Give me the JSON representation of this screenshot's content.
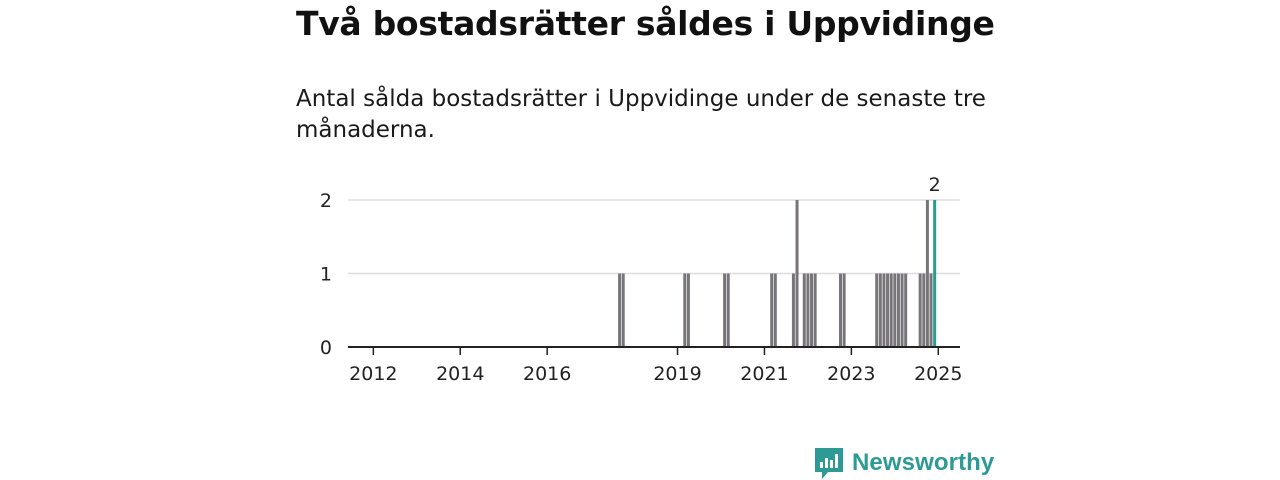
{
  "title": "Två bostadsrätter såldes i Uppvidinge",
  "subtitle": "Antal sålda bostadsrätter i Uppvidinge under de senaste tre månaderna.",
  "brand": {
    "name": "Newsworthy",
    "color": "#2d9a96",
    "icon": "bar-chart-logo-icon"
  },
  "colors": {
    "bar": "#77757a",
    "highlight": "#2a9d8f",
    "grid": "#dddddd",
    "axis": "#222222"
  },
  "chart_data": {
    "type": "bar",
    "x_unit": "month",
    "xlim": [
      "2011-06",
      "2025-07"
    ],
    "ylim": [
      0,
      2
    ],
    "y_ticks": [
      "0",
      "1",
      "2"
    ],
    "x_ticks": [
      "2012",
      "2014",
      "2016",
      "2019",
      "2021",
      "2023",
      "2025"
    ],
    "grid": true,
    "series": [
      {
        "points": [
          [
            "2017-09",
            1
          ],
          [
            "2017-10",
            1
          ],
          [
            "2019-03",
            1
          ],
          [
            "2019-04",
            1
          ],
          [
            "2020-02",
            1
          ],
          [
            "2020-03",
            1
          ],
          [
            "2021-03",
            1
          ],
          [
            "2021-04",
            1
          ],
          [
            "2021-09",
            1
          ],
          [
            "2021-10",
            2
          ],
          [
            "2021-11",
            0
          ],
          [
            "2021-12",
            1
          ],
          [
            "2022-01",
            1
          ],
          [
            "2022-02",
            1
          ],
          [
            "2022-03",
            1
          ],
          [
            "2022-10",
            1
          ],
          [
            "2022-11",
            1
          ],
          [
            "2023-08",
            1
          ],
          [
            "2023-09",
            1
          ],
          [
            "2023-10",
            1
          ],
          [
            "2023-11",
            1
          ],
          [
            "2023-12",
            1
          ],
          [
            "2024-01",
            1
          ],
          [
            "2024-02",
            1
          ],
          [
            "2024-03",
            1
          ],
          [
            "2024-04",
            1
          ],
          [
            "2024-08",
            1
          ],
          [
            "2024-09",
            1
          ],
          [
            "2024-10",
            2
          ],
          [
            "2024-11",
            1
          ],
          [
            "2024-12",
            2
          ]
        ]
      }
    ],
    "highlight": {
      "x": "2024-12",
      "value": 2,
      "label": "2"
    }
  }
}
